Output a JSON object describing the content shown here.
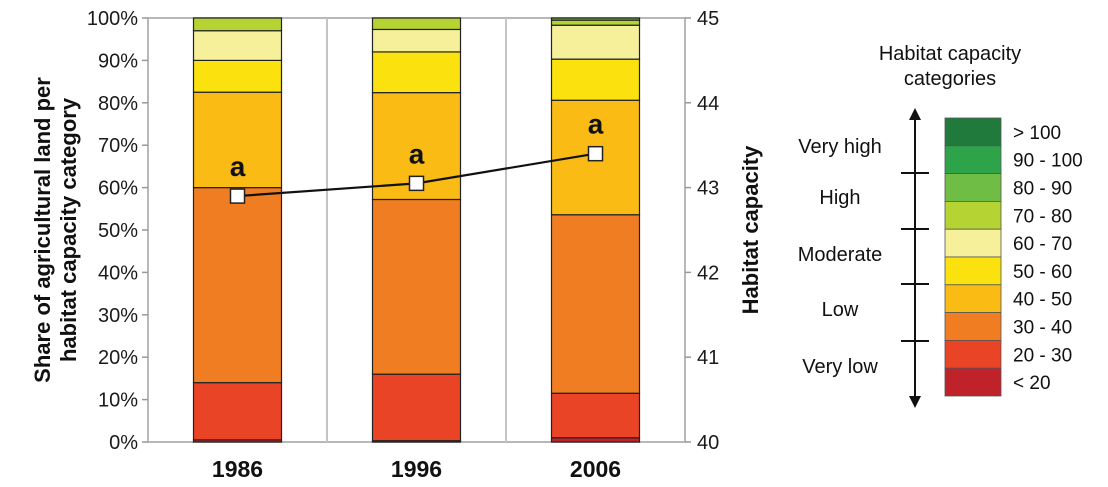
{
  "chart_data": {
    "type": "bar",
    "stacked": true,
    "categories": [
      "1986",
      "1996",
      "2006"
    ],
    "ylabel": "Share of agricultural land per habitat capacity category",
    "ylabel_lines": [
      "Share of agricultural land per",
      "habitat capacity category"
    ],
    "y2label": "Habitat capacity",
    "yticks": [
      "0%",
      "10%",
      "20%",
      "30%",
      "40%",
      "50%",
      "60%",
      "70%",
      "80%",
      "90%",
      "100%"
    ],
    "y2ticks": [
      "40",
      "41",
      "42",
      "43",
      "44",
      "45"
    ],
    "ylim": [
      0,
      100
    ],
    "y2lim": [
      40,
      45
    ],
    "grid": false,
    "series": [
      {
        "name": "< 20",
        "color": "#c0222a",
        "values": [
          0.5,
          0.3,
          1.0
        ]
      },
      {
        "name": "20 - 30",
        "color": "#ea4426",
        "values": [
          13.5,
          15.7,
          10.5
        ]
      },
      {
        "name": "30 - 40",
        "color": "#f07d22",
        "values": [
          46.0,
          41.2,
          42.1
        ]
      },
      {
        "name": "40 - 50",
        "color": "#fbbb15",
        "values": [
          22.5,
          25.2,
          27.0
        ]
      },
      {
        "name": "50 - 60",
        "color": "#fbe10e",
        "values": [
          7.5,
          9.6,
          9.7
        ]
      },
      {
        "name": "60 - 70",
        "color": "#f6f09a",
        "values": [
          7.0,
          5.3,
          8.0
        ]
      },
      {
        "name": "70 - 80",
        "color": "#b5d333",
        "values": [
          3.0,
          2.7,
          1.2
        ]
      },
      {
        "name": "80 - 90",
        "color": "#6fbd45",
        "values": [
          0,
          0,
          0.5
        ]
      },
      {
        "name": "90 - 100",
        "color": "#2ea44a",
        "values": [
          0,
          0,
          0
        ]
      },
      {
        "name": "> 100",
        "color": "#207a3c",
        "values": [
          0,
          0,
          0
        ]
      }
    ],
    "line": {
      "axis": "secondary",
      "values": [
        42.9,
        43.05,
        43.4
      ],
      "labels": [
        "a",
        "a",
        "a"
      ]
    },
    "legend": {
      "position": "right",
      "title_lines": [
        "Habitat capacity",
        "categories"
      ],
      "items": [
        "> 100",
        "90 - 100",
        "80 - 90",
        "70 - 80",
        "60 - 70",
        "50 - 60",
        "40 - 50",
        "30 - 40",
        "20 - 30",
        "< 20"
      ],
      "colors": [
        "#207a3c",
        "#2ea44a",
        "#6fbd45",
        "#b5d333",
        "#f6f09a",
        "#fbe10e",
        "#fbbb15",
        "#f07d22",
        "#ea4426",
        "#c0222a"
      ],
      "groups": [
        "Very high",
        "High",
        "Moderate",
        "Low",
        "Very low"
      ]
    }
  }
}
